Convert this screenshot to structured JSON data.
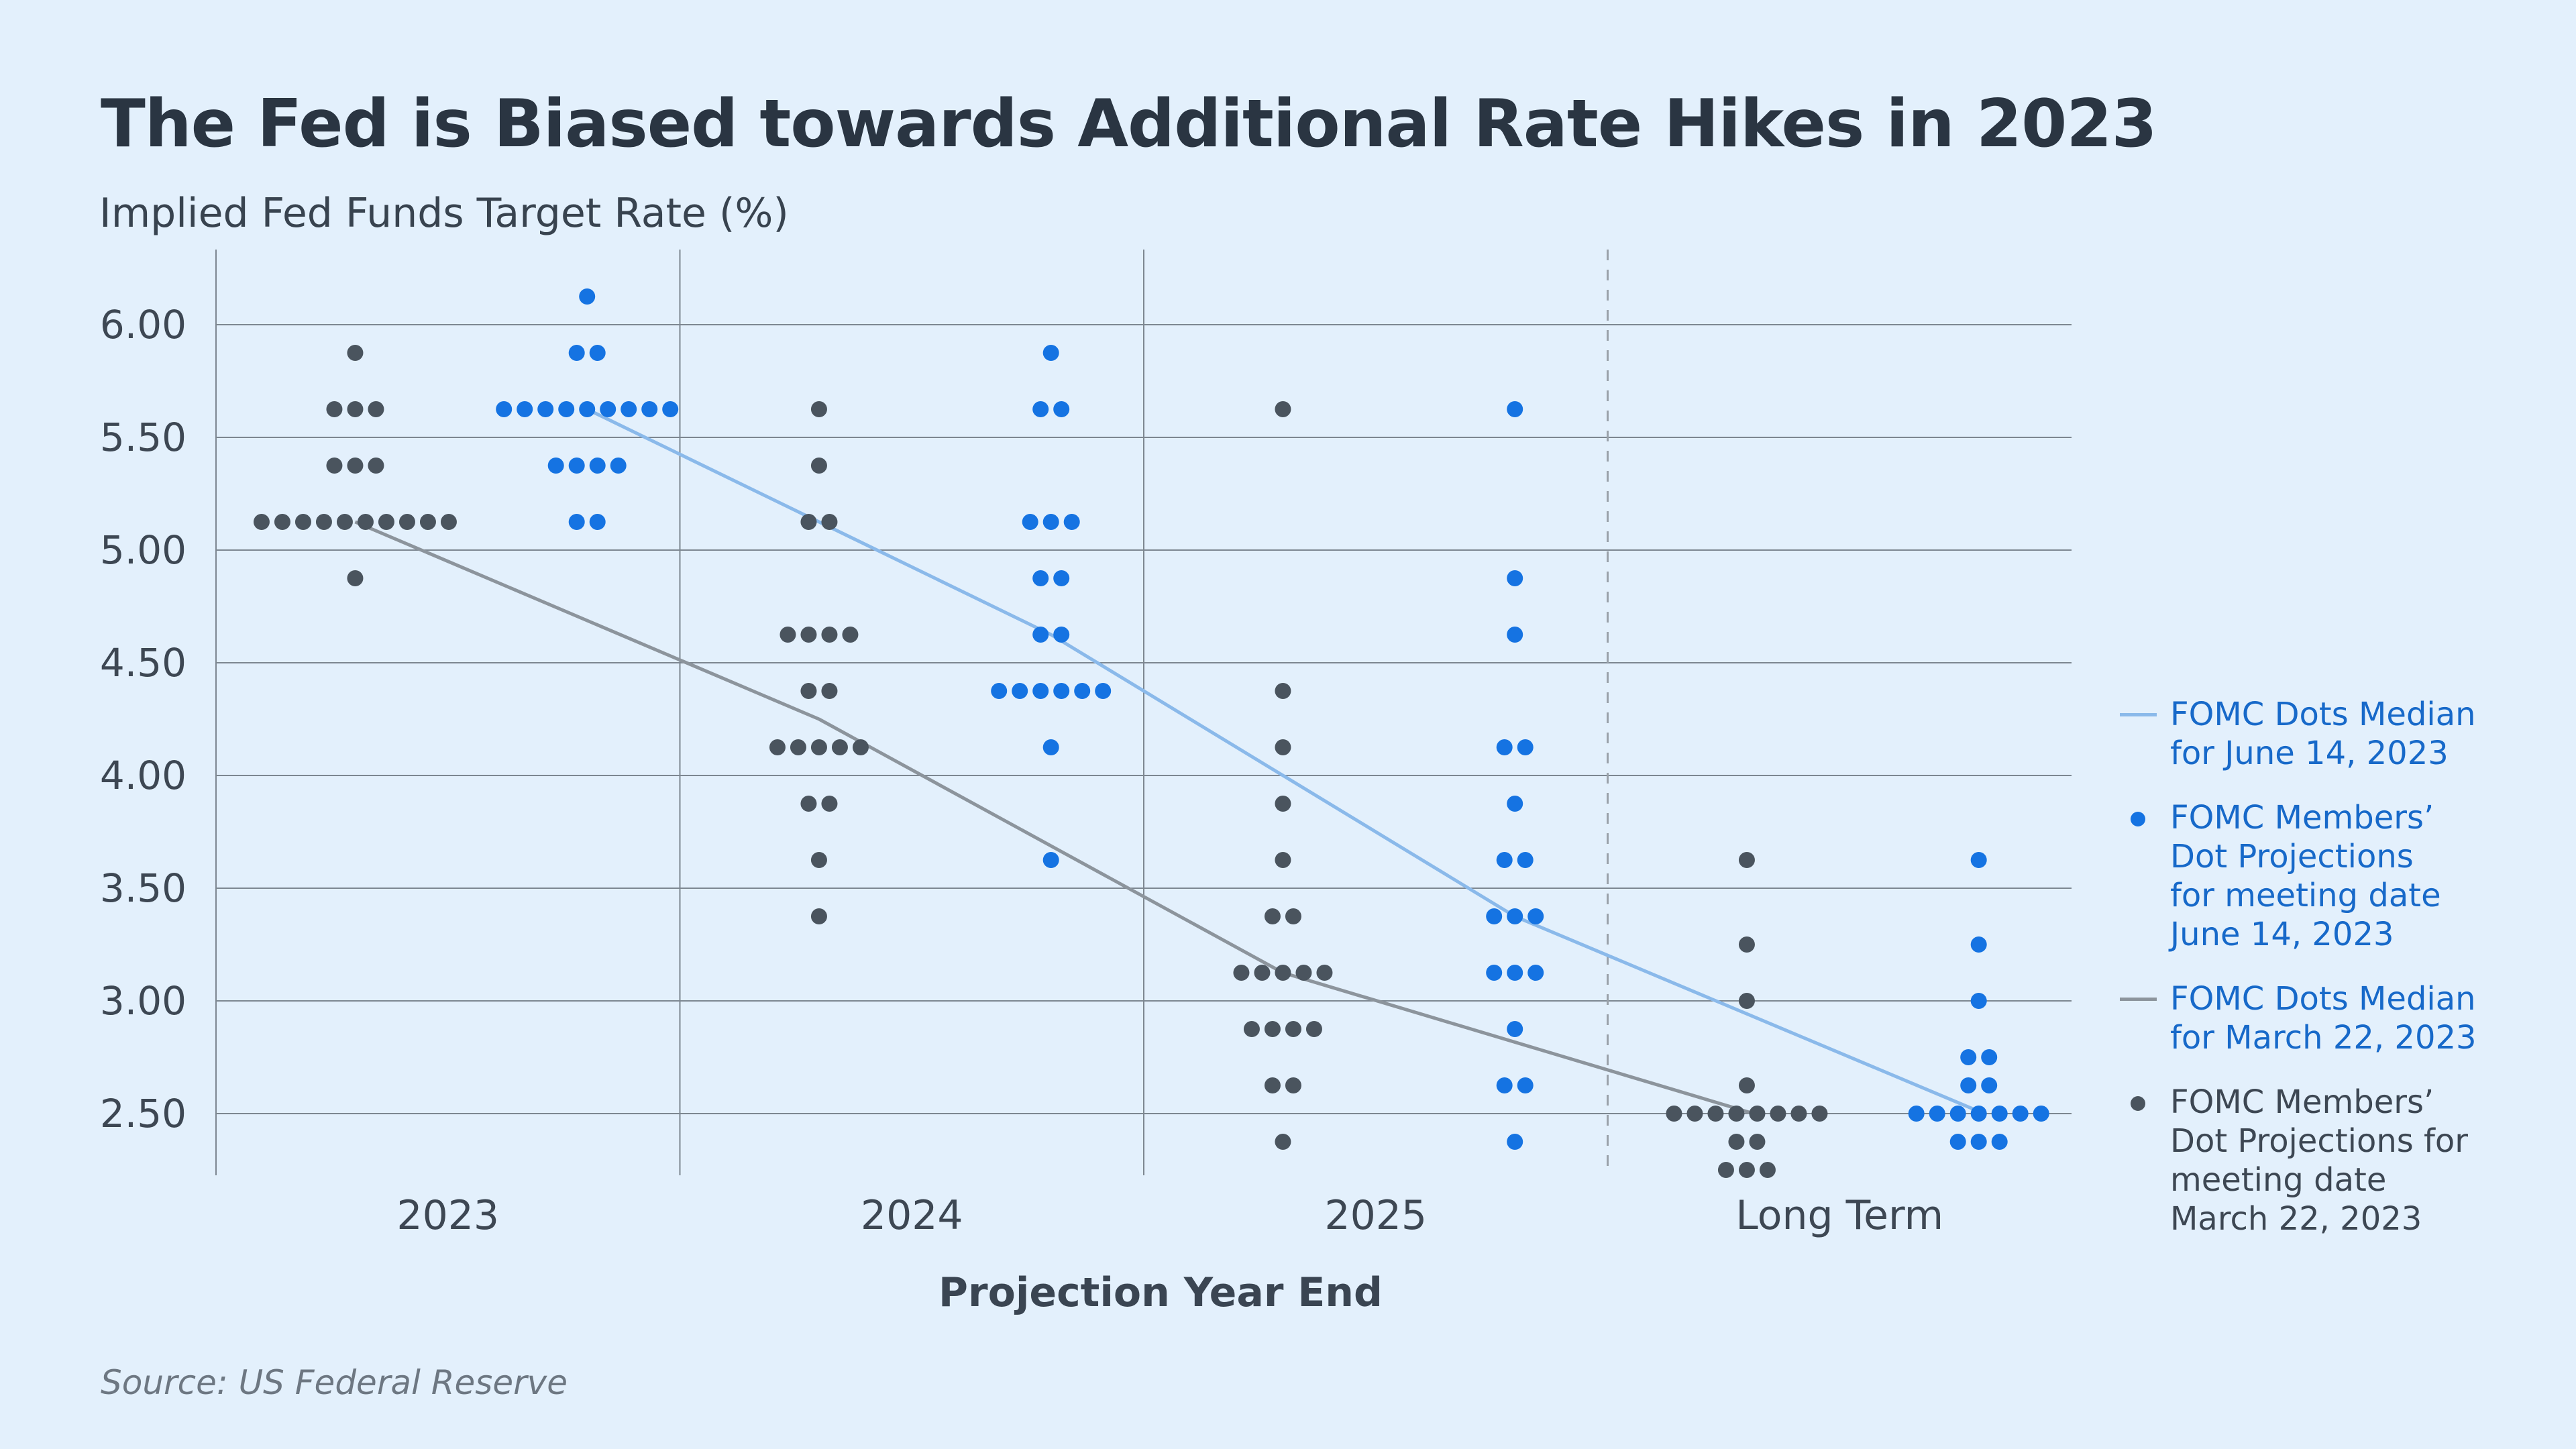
{
  "chart_data": {
    "type": "scatter",
    "title": "The Fed is Biased towards Additional Rate Hikes in 2023",
    "ylabel": "Implied Fed Funds Target Rate (%)",
    "xlabel": "Projection Year End",
    "source": "Source: US Federal Reserve",
    "ylim": [
      2.25,
      6.25
    ],
    "y_ticks": [
      "6.00",
      "5.50",
      "5.00",
      "4.50",
      "4.00",
      "3.50",
      "3.00",
      "2.50"
    ],
    "categories": [
      "2023",
      "2024",
      "2025",
      "Long Term"
    ],
    "series": [
      {
        "name": "FOMC Members’ Dot Projections for meeting date March 22, 2023",
        "type": "dots",
        "color": "#4a545e",
        "points": {
          "2023": [
            [
              5.875,
              1
            ],
            [
              5.625,
              3
            ],
            [
              5.375,
              3
            ],
            [
              5.125,
              10
            ],
            [
              4.875,
              1
            ]
          ],
          "2024": [
            [
              5.625,
              1
            ],
            [
              5.375,
              1
            ],
            [
              5.125,
              2
            ],
            [
              4.625,
              4
            ],
            [
              4.375,
              2
            ],
            [
              4.125,
              5
            ],
            [
              3.875,
              2
            ],
            [
              3.625,
              1
            ],
            [
              3.375,
              1
            ]
          ],
          "2025": [
            [
              5.625,
              1
            ],
            [
              4.375,
              1
            ],
            [
              4.125,
              1
            ],
            [
              3.875,
              1
            ],
            [
              3.625,
              1
            ],
            [
              3.375,
              2
            ],
            [
              3.125,
              5
            ],
            [
              2.875,
              4
            ],
            [
              2.625,
              2
            ],
            [
              2.375,
              1
            ]
          ],
          "Long Term": [
            [
              3.625,
              1
            ],
            [
              3.25,
              1
            ],
            [
              3.0,
              1
            ],
            [
              2.625,
              1
            ],
            [
              2.5,
              8
            ],
            [
              2.375,
              2
            ],
            [
              2.25,
              3
            ]
          ]
        }
      },
      {
        "name": "FOMC Members’ Dot Projections for meeting date June 14, 2023",
        "type": "dots",
        "color": "#1573e2",
        "points": {
          "2023": [
            [
              6.125,
              1
            ],
            [
              5.875,
              2
            ],
            [
              5.625,
              9
            ],
            [
              5.375,
              4
            ],
            [
              5.125,
              2
            ]
          ],
          "2024": [
            [
              5.875,
              1
            ],
            [
              5.625,
              2
            ],
            [
              5.125,
              3
            ],
            [
              4.875,
              2
            ],
            [
              4.625,
              2
            ],
            [
              4.375,
              6
            ],
            [
              4.125,
              1
            ],
            [
              3.625,
              1
            ]
          ],
          "2025": [
            [
              5.625,
              1
            ],
            [
              4.875,
              1
            ],
            [
              4.625,
              1
            ],
            [
              4.125,
              2
            ],
            [
              3.875,
              1
            ],
            [
              3.625,
              2
            ],
            [
              3.375,
              3
            ],
            [
              3.125,
              3
            ],
            [
              2.875,
              1
            ],
            [
              2.625,
              2
            ],
            [
              2.375,
              1
            ]
          ],
          "Long Term": [
            [
              3.625,
              1
            ],
            [
              3.25,
              1
            ],
            [
              3.0,
              1
            ],
            [
              2.75,
              2
            ],
            [
              2.625,
              2
            ],
            [
              2.5,
              7
            ],
            [
              2.375,
              3
            ]
          ]
        }
      },
      {
        "name": "FOMC Dots Median for March 22, 2023",
        "type": "line",
        "color": "#8c949c",
        "values": [
          5.125,
          4.25,
          3.125,
          2.5
        ]
      },
      {
        "name": "FOMC Dots Median for June 14, 2023",
        "type": "line",
        "color": "#8ab9ea",
        "values": [
          5.625,
          4.625,
          3.375,
          2.5
        ]
      }
    ],
    "legend": [
      {
        "kind": "line",
        "color": "#8ab9ea",
        "text": "FOMC Dots Median\nfor June 14, 2023"
      },
      {
        "kind": "dot",
        "color": "#1573e2",
        "text": "FOMC Members’\n Dot Projections\nfor meeting date\nJune 14, 2023"
      },
      {
        "kind": "line",
        "color": "#8c949c",
        "text": "FOMC Dots Median\nfor March 22, 2023"
      },
      {
        "kind": "dot",
        "color": "#4a545e",
        "text": "FOMC Members’\nDot Projections for\nmeeting date\nMarch 22, 2023"
      }
    ]
  }
}
